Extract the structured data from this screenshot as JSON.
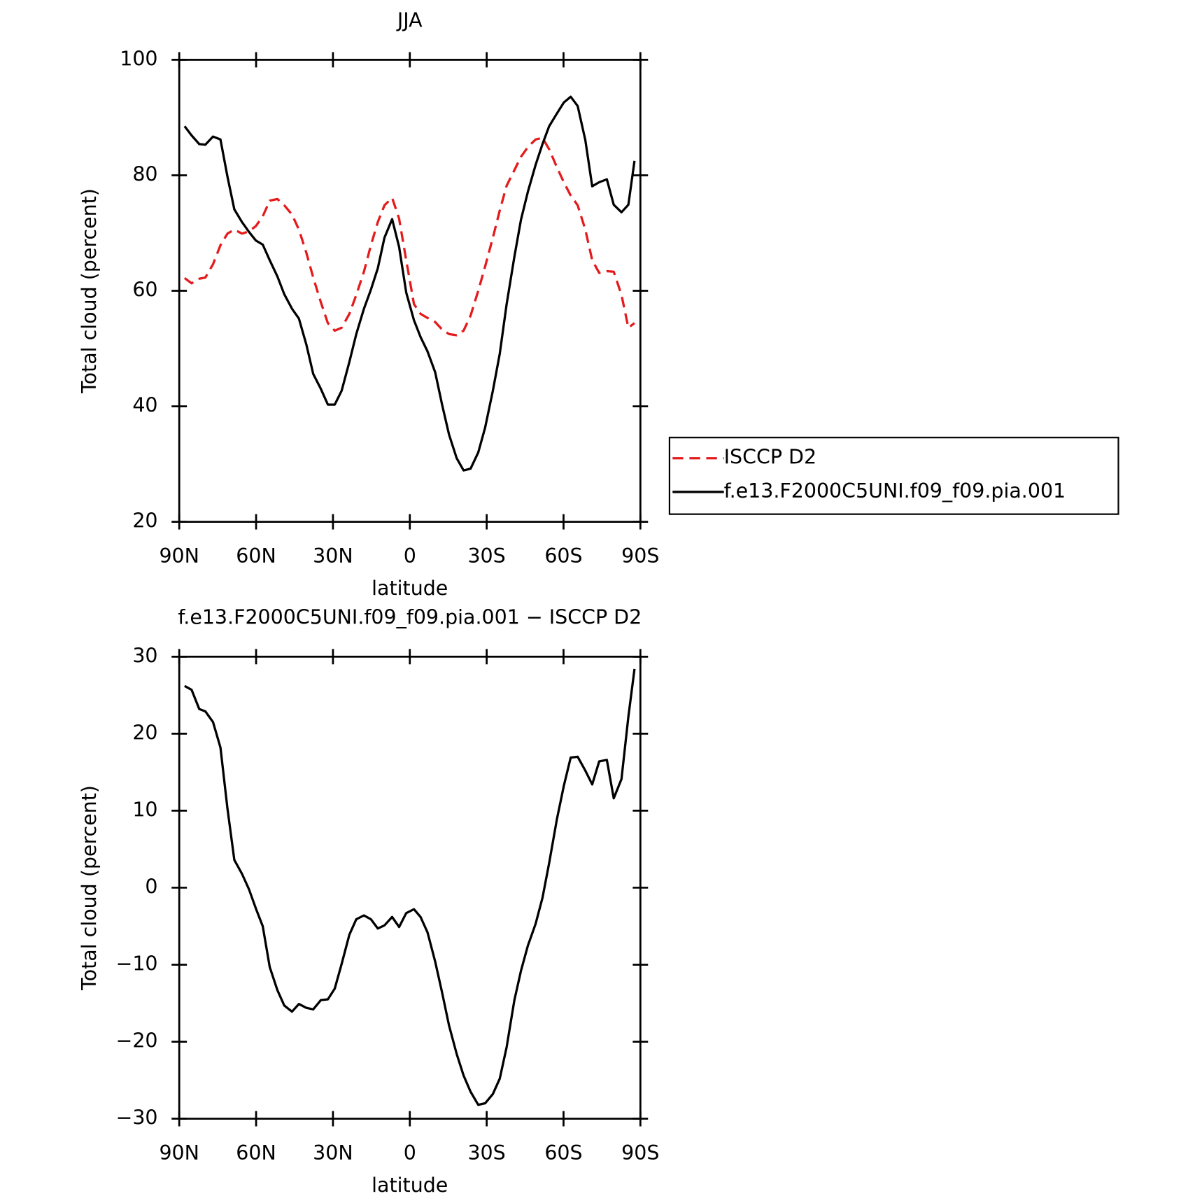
{
  "chart_data": [
    {
      "type": "line",
      "title": "JJA",
      "xlabel": "latitude",
      "ylabel": "Total cloud (percent)",
      "x": [
        87.9,
        85.2,
        82.2,
        79.8,
        76.8,
        73.9,
        71.2,
        68.5,
        65.5,
        62.8,
        60.1,
        57.4,
        54.7,
        51.7,
        49.0,
        46.0,
        43.3,
        40.4,
        37.7,
        34.7,
        32.0,
        29.3,
        26.6,
        23.6,
        20.9,
        17.9,
        15.2,
        12.5,
        9.9,
        6.9,
        4.2,
        1.4,
        -1.6,
        -4.2,
        -6.9,
        -9.9,
        -12.6,
        -15.3,
        -18.3,
        -21.0,
        -23.7,
        -26.7,
        -29.4,
        -32.4,
        -35.1,
        -37.8,
        -40.8,
        -43.4,
        -46.1,
        -49.1,
        -51.8,
        -54.4,
        -57.4,
        -60.1,
        -62.8,
        -65.5,
        -68.5,
        -71.2,
        -73.9,
        -76.9,
        -79.6,
        -82.6,
        -85.3,
        -87.7
      ],
      "series": [
        {
          "name": "ISCCP D2",
          "color": "#e41a1c",
          "style": "dashed",
          "values": [
            62.2,
            61.3,
            62.1,
            62.3,
            64.6,
            67.9,
            69.9,
            70.6,
            69.9,
            70.3,
            71.2,
            72.9,
            75.6,
            75.9,
            74.8,
            73.2,
            70.6,
            66.6,
            62.3,
            58.0,
            54.4,
            53.1,
            53.6,
            56.0,
            59.3,
            63.3,
            67.9,
            71.9,
            74.8,
            76.1,
            72.5,
            65.3,
            57.7,
            56.0,
            55.3,
            54.6,
            53.3,
            52.5,
            52.3,
            53.1,
            55.7,
            60.0,
            64.2,
            69.2,
            73.9,
            78.2,
            80.9,
            83.2,
            84.9,
            86.2,
            86.5,
            84.5,
            81.4,
            78.8,
            76.5,
            74.8,
            70.6,
            65.3,
            63.1,
            63.4,
            63.3,
            59.3,
            53.6,
            54.4
          ]
        },
        {
          "name": "f.e13.F2000C5UNI.f09_f09.pia.001",
          "color": "#000000",
          "style": "solid",
          "values": [
            88.5,
            86.9,
            85.4,
            85.3,
            86.7,
            86.2,
            79.8,
            74.1,
            71.9,
            70.2,
            68.7,
            68.0,
            65.3,
            62.5,
            59.4,
            56.9,
            55.2,
            50.7,
            45.6,
            43.0,
            40.3,
            40.3,
            42.7,
            47.7,
            52.5,
            56.9,
            60.2,
            63.9,
            69.2,
            72.4,
            67.6,
            59.7,
            54.9,
            52.0,
            49.5,
            45.9,
            40.3,
            35.1,
            31.0,
            28.9,
            29.2,
            32.0,
            36.3,
            42.7,
            49.1,
            57.7,
            65.9,
            72.3,
            77.2,
            81.8,
            85.4,
            88.5,
            90.7,
            92.6,
            93.6,
            92.0,
            86.1,
            78.1,
            78.8,
            79.3,
            74.9,
            73.6,
            74.9,
            82.5
          ]
        }
      ],
      "xlim": [
        90,
        -90
      ],
      "xticks": [
        {
          "value": 90,
          "label": "90N"
        },
        {
          "value": 60,
          "label": "60N"
        },
        {
          "value": 30,
          "label": "30N"
        },
        0,
        {
          "value": -30,
          "label": "30S"
        },
        {
          "value": -60,
          "label": "60S"
        },
        {
          "value": -90,
          "label": "90S"
        }
      ],
      "ylim": [
        20,
        100
      ],
      "yticks": [
        20,
        40,
        60,
        80,
        100
      ],
      "legend": "right"
    },
    {
      "type": "line",
      "title": "f.e13.F2000C5UNI.f09_f09.pia.001 − ISCCP D2",
      "xlabel": "latitude",
      "ylabel": "Total cloud (percent)",
      "x": [
        87.9,
        85.2,
        82.2,
        79.8,
        76.8,
        73.9,
        71.2,
        68.5,
        65.5,
        62.8,
        60.1,
        57.4,
        54.7,
        51.7,
        49.0,
        46.0,
        43.3,
        40.4,
        37.7,
        34.7,
        32.0,
        29.3,
        26.6,
        23.6,
        20.9,
        17.9,
        15.2,
        12.5,
        9.9,
        6.9,
        4.2,
        1.4,
        -1.6,
        -4.2,
        -6.9,
        -9.9,
        -12.6,
        -15.3,
        -18.3,
        -21.0,
        -23.7,
        -26.7,
        -29.4,
        -32.4,
        -35.1,
        -37.8,
        -40.8,
        -43.4,
        -46.1,
        -49.1,
        -51.8,
        -54.4,
        -57.4,
        -60.1,
        -62.8,
        -65.5,
        -68.5,
        -71.2,
        -73.9,
        -76.9,
        -79.6,
        -82.6,
        -85.3,
        -87.7
      ],
      "color": "#000000",
      "values": [
        26.2,
        25.7,
        23.2,
        22.9,
        21.5,
        18.2,
        10.3,
        3.6,
        1.8,
        -0.2,
        -2.7,
        -5.0,
        -10.3,
        -13.3,
        -15.3,
        -16.1,
        -15.1,
        -15.6,
        -15.8,
        -14.6,
        -14.5,
        -13.1,
        -9.9,
        -6.1,
        -4.1,
        -3.6,
        -4.1,
        -5.3,
        -4.9,
        -3.8,
        -5.1,
        -3.3,
        -2.8,
        -3.8,
        -5.8,
        -9.6,
        -13.6,
        -17.9,
        -21.6,
        -24.4,
        -26.5,
        -28.2,
        -28.0,
        -26.8,
        -24.8,
        -20.7,
        -14.6,
        -10.8,
        -7.5,
        -4.7,
        -1.3,
        3.2,
        8.9,
        13.2,
        16.9,
        17.0,
        15.2,
        13.4,
        16.4,
        16.6,
        11.6,
        14.1,
        22.2,
        28.4
      ],
      "xlim": [
        90,
        -90
      ],
      "xticks": [
        {
          "value": 90,
          "label": "90N"
        },
        {
          "value": 60,
          "label": "60N"
        },
        {
          "value": 30,
          "label": "30N"
        },
        0,
        {
          "value": -30,
          "label": "30S"
        },
        {
          "value": -60,
          "label": "60S"
        },
        {
          "value": -90,
          "label": "90S"
        }
      ],
      "ylim": [
        -30,
        30
      ],
      "yticks": [
        {
          "value": -30,
          "label": "−30"
        },
        {
          "value": -20,
          "label": "−20"
        },
        {
          "value": -10,
          "label": "−10"
        },
        0,
        10,
        20,
        30
      ]
    }
  ]
}
